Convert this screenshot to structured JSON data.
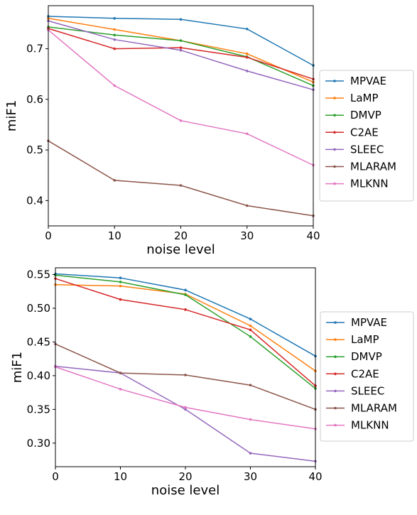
{
  "chart_data": [
    {
      "type": "line",
      "xlabel": "noise level",
      "ylabel": "miF1",
      "x": [
        0,
        10,
        20,
        30,
        40
      ],
      "xlim": [
        0,
        40
      ],
      "ylim": [
        0.35,
        0.785
      ],
      "xticks": [
        0,
        10,
        20,
        30,
        40
      ],
      "yticks": [
        0.4,
        0.5,
        0.6,
        0.7
      ],
      "ytick_labels": [
        "0.4",
        "0.5",
        "0.6",
        "0.7"
      ],
      "grid": false,
      "legend_position": "right",
      "series": [
        {
          "name": "MPVAE",
          "color": "#1f77b4",
          "values": [
            0.764,
            0.76,
            0.758,
            0.739,
            0.667
          ]
        },
        {
          "name": "LaMP",
          "color": "#ff7f0e",
          "values": [
            0.76,
            0.738,
            0.716,
            0.69,
            0.634
          ]
        },
        {
          "name": "DMVP",
          "color": "#2ca02c",
          "values": [
            0.743,
            0.727,
            0.716,
            0.684,
            0.627
          ]
        },
        {
          "name": "C2AE",
          "color": "#d62728",
          "values": [
            0.74,
            0.7,
            0.702,
            0.683,
            0.64
          ]
        },
        {
          "name": "SLEEC",
          "color": "#9467bd",
          "values": [
            0.755,
            0.718,
            0.697,
            0.656,
            0.619
          ]
        },
        {
          "name": "MLARAM",
          "color": "#8c564b",
          "values": [
            0.518,
            0.44,
            0.43,
            0.39,
            0.37
          ]
        },
        {
          "name": "MLKNN",
          "color": "#e377c2",
          "values": [
            0.737,
            0.627,
            0.558,
            0.532,
            0.47
          ]
        }
      ]
    },
    {
      "type": "line",
      "xlabel": "noise level",
      "ylabel": "miF1",
      "x": [
        0,
        10,
        20,
        30,
        40
      ],
      "xlim": [
        0,
        40
      ],
      "ylim": [
        0.265,
        0.56
      ],
      "xticks": [
        0,
        10,
        20,
        30,
        40
      ],
      "yticks": [
        0.3,
        0.35,
        0.4,
        0.45,
        0.5,
        0.55
      ],
      "ytick_labels": [
        "0.30",
        "0.35",
        "0.40",
        "0.45",
        "0.50",
        "0.55"
      ],
      "grid": false,
      "legend_position": "right",
      "series": [
        {
          "name": "MPVAE",
          "color": "#1f77b4",
          "values": [
            0.551,
            0.545,
            0.527,
            0.484,
            0.429
          ]
        },
        {
          "name": "LaMP",
          "color": "#ff7f0e",
          "values": [
            0.535,
            0.533,
            0.521,
            0.474,
            0.407
          ]
        },
        {
          "name": "DMVP",
          "color": "#2ca02c",
          "values": [
            0.549,
            0.539,
            0.52,
            0.458,
            0.381
          ]
        },
        {
          "name": "C2AE",
          "color": "#d62728",
          "values": [
            0.544,
            0.513,
            0.498,
            0.468,
            0.385
          ]
        },
        {
          "name": "SLEEC",
          "color": "#9467bd",
          "values": [
            0.414,
            0.404,
            0.35,
            0.285,
            0.273
          ]
        },
        {
          "name": "MLARAM",
          "color": "#8c564b",
          "values": [
            0.447,
            0.404,
            0.401,
            0.386,
            0.35
          ]
        },
        {
          "name": "MLKNN",
          "color": "#e377c2",
          "values": [
            0.413,
            0.38,
            0.353,
            0.335,
            0.321
          ]
        }
      ]
    }
  ]
}
